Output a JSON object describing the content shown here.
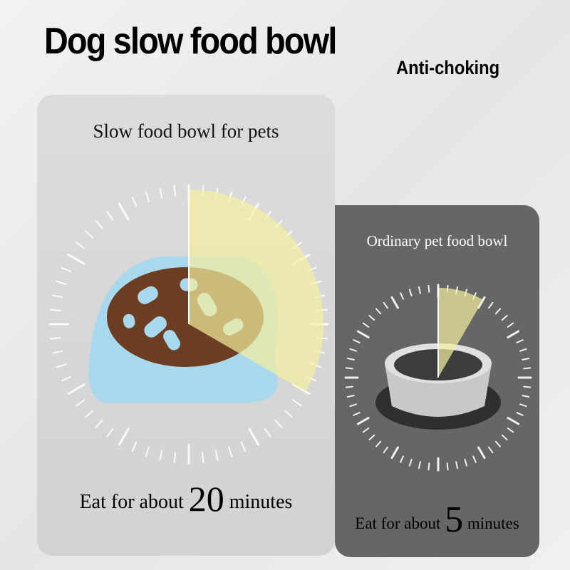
{
  "header": {
    "title": "Dog slow food bowl",
    "tagline": "Anti-choking"
  },
  "slow_bowl": {
    "caption": "Slow food bowl for pets",
    "eat_prefix": "Eat for about",
    "minutes_value": "20",
    "eat_suffix": "minutes",
    "wedge_minutes": 20,
    "bowl_color": "#a9d8ec"
  },
  "ordinary_bowl": {
    "caption": "Ordinary pet food bowl",
    "eat_prefix": "Eat for about",
    "minutes_value": "5",
    "eat_suffix": "minutes",
    "wedge_minutes": 5,
    "bowl_color": "#c8c8c8"
  },
  "colors": {
    "wedge": "#f3f0a0",
    "ticks": "#ffffff",
    "ordinary_card": "#666666",
    "slow_card": "#d6d6d6"
  }
}
